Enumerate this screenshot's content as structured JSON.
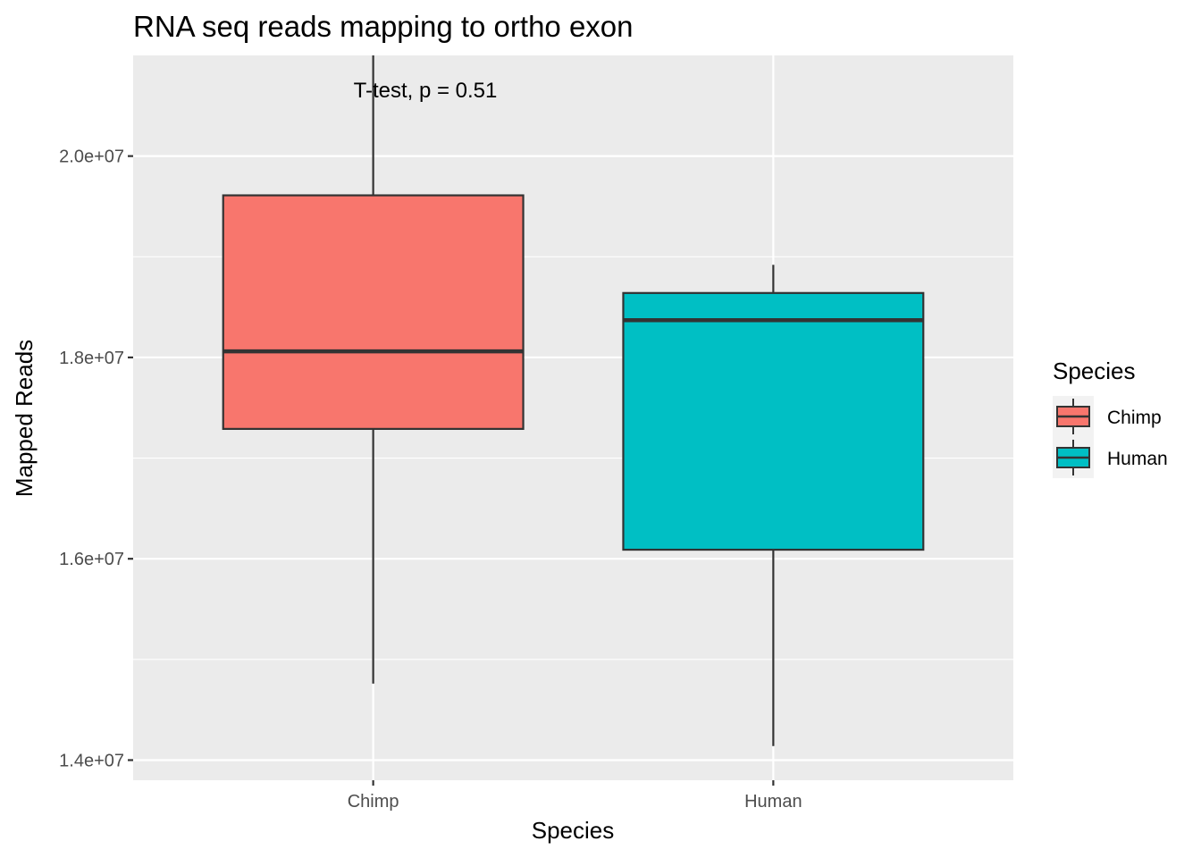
{
  "chart_data": {
    "type": "boxplot",
    "title": "RNA seq reads mapping to ortho exon",
    "xlabel": "Species",
    "ylabel": "Mapped Reads",
    "categories": [
      "Chimp",
      "Human"
    ],
    "ylim": [
      13800000,
      21000000
    ],
    "y_ticks": [
      14000000,
      16000000,
      18000000,
      20000000
    ],
    "y_tick_labels": [
      "1.4e+07",
      "1.6e+07",
      "1.8e+07",
      "2.0e+07"
    ],
    "boxes": [
      {
        "category": "Chimp",
        "min": 14760000,
        "q1": 17290000,
        "median": 18060000,
        "q3": 19610000,
        "max": 21000000,
        "fill": "#F8766D"
      },
      {
        "category": "Human",
        "min": 14140000,
        "q1": 16090000,
        "median": 18370000,
        "q3": 18640000,
        "max": 18920000,
        "fill": "#00BFC4"
      }
    ],
    "annotation": "T-test, p = 0.51",
    "grid": true,
    "panel_background": "#EBEBEB",
    "legend": {
      "title": "Species",
      "placement": "right",
      "entries": [
        {
          "label": "Chimp",
          "fill": "#F8766D"
        },
        {
          "label": "Human",
          "fill": "#00BFC4"
        }
      ]
    }
  }
}
